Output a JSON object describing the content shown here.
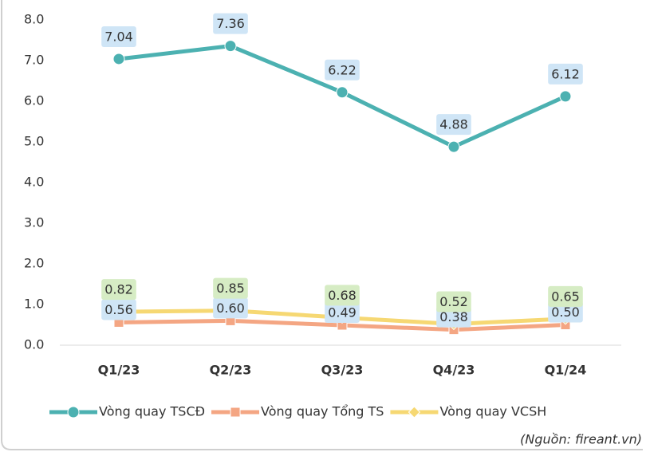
{
  "chart_data": {
    "type": "line",
    "categories": [
      "Q1/23",
      "Q2/23",
      "Q3/23",
      "Q4/23",
      "Q1/24"
    ],
    "series": [
      {
        "name": "Vòng quay TSCĐ",
        "color": "#4cb1b1",
        "label_bg": "#cfe5f6",
        "marker": "circle",
        "values": [
          7.04,
          7.36,
          6.22,
          4.88,
          6.12
        ]
      },
      {
        "name": "Vòng quay Tổng TS",
        "color": "#f4a683",
        "label_bg": "#cfe5f6",
        "marker": "square",
        "values": [
          0.56,
          0.6,
          0.49,
          0.38,
          0.5
        ],
        "value_labels": [
          "0.56",
          "0.60",
          "0.49",
          "0.38",
          "0.50"
        ]
      },
      {
        "name": "Vòng quay VCSH",
        "color": "#f6d873",
        "label_bg": "#d6ecc4",
        "marker": "diamond",
        "values": [
          0.82,
          0.85,
          0.68,
          0.52,
          0.65
        ]
      }
    ],
    "ylim": [
      0,
      8
    ],
    "yticks": [
      {
        "value": 0,
        "label": "0.0"
      },
      {
        "value": 1,
        "label": "1.0"
      },
      {
        "value": 2,
        "label": "2.0"
      },
      {
        "value": 3,
        "label": "3.0"
      },
      {
        "value": 4,
        "label": "4.0"
      },
      {
        "value": 5,
        "label": "5.0"
      },
      {
        "value": 6,
        "label": "6.0"
      },
      {
        "value": 7,
        "label": "7.0"
      },
      {
        "value": 8,
        "label": "8.0"
      }
    ],
    "grid": false,
    "legend": "bottom",
    "source": "(Nguồn: fireant.vn)"
  }
}
